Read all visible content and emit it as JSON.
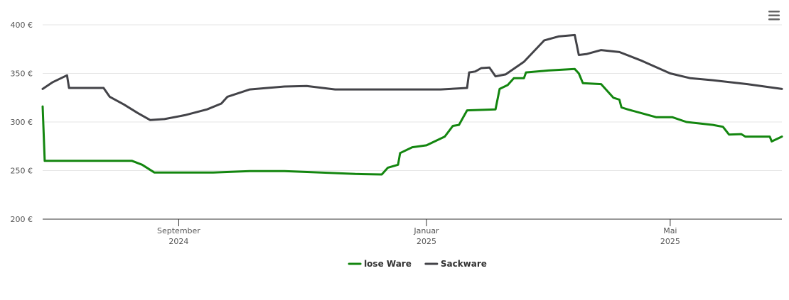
{
  "chart_data": {
    "type": "line",
    "xlim": [
      "2024-06-26",
      "2025-06-25"
    ],
    "xticks": [
      {
        "value": "2024-09-01",
        "label": [
          "September",
          "2024"
        ]
      },
      {
        "value": "2025-01-01",
        "label": [
          "Januar",
          "2025"
        ]
      },
      {
        "value": "2025-05-01",
        "label": [
          "Mai",
          "2025"
        ]
      }
    ],
    "ylim": [
      200,
      400
    ],
    "yticks": [
      {
        "value": 200,
        "label": "200 €"
      },
      {
        "value": 250,
        "label": "250 €"
      },
      {
        "value": 300,
        "label": "300 €"
      },
      {
        "value": 350,
        "label": "350 €"
      },
      {
        "value": 400,
        "label": "400 €"
      }
    ],
    "grid": true,
    "legend": "bottom",
    "series": [
      {
        "name": "lose Ware",
        "color": "#13860f",
        "x": [
          "2024-06-26",
          "2024-06-27",
          "2024-08-09",
          "2024-08-14",
          "2024-08-20",
          "2024-09-18",
          "2024-10-06",
          "2024-10-23",
          "2024-11-10",
          "2024-11-27",
          "2024-12-10",
          "2024-12-13",
          "2024-12-18",
          "2024-12-19",
          "2024-12-25",
          "2025-01-01",
          "2025-01-10",
          "2025-01-14",
          "2025-01-17",
          "2025-01-21",
          "2025-02-04",
          "2025-02-06",
          "2025-02-10",
          "2025-02-13",
          "2025-02-18",
          "2025-02-19",
          "2025-03-02",
          "2025-03-15",
          "2025-03-17",
          "2025-03-19",
          "2025-03-28",
          "2025-04-03",
          "2025-04-06",
          "2025-04-07",
          "2025-04-10",
          "2025-04-17",
          "2025-04-24",
          "2025-05-02",
          "2025-05-09",
          "2025-05-22",
          "2025-05-27",
          "2025-05-30",
          "2025-06-05",
          "2025-06-07",
          "2025-06-19",
          "2025-06-20",
          "2025-06-25"
        ],
        "values": [
          316,
          260,
          260,
          256,
          248,
          248,
          249.5,
          249.5,
          248,
          246.5,
          246,
          253,
          256,
          268,
          274,
          276,
          285,
          296,
          297,
          312,
          313,
          334,
          338,
          345,
          345,
          351,
          353,
          354.5,
          350,
          340,
          339,
          325,
          323,
          315,
          313,
          309,
          305,
          305,
          300,
          297,
          295,
          287,
          287.5,
          285,
          285,
          280,
          285
        ]
      },
      {
        "name": "Sackware",
        "color": "#434348",
        "x": [
          "2024-06-26",
          "2024-07-01",
          "2024-07-08",
          "2024-07-09",
          "2024-07-26",
          "2024-07-29",
          "2024-08-05",
          "2024-08-12",
          "2024-08-18",
          "2024-08-25",
          "2024-09-04",
          "2024-09-15",
          "2024-09-22",
          "2024-09-25",
          "2024-10-06",
          "2024-10-23",
          "2024-11-03",
          "2024-11-17",
          "2024-12-15",
          "2025-01-08",
          "2025-01-21",
          "2025-01-22",
          "2025-01-25",
          "2025-01-28",
          "2025-02-01",
          "2025-02-04",
          "2025-02-09",
          "2025-02-18",
          "2025-02-28",
          "2025-03-07",
          "2025-03-15",
          "2025-03-17",
          "2025-03-21",
          "2025-03-28",
          "2025-04-06",
          "2025-04-17",
          "2025-05-01",
          "2025-05-11",
          "2025-05-22",
          "2025-06-08",
          "2025-06-25"
        ],
        "values": [
          334,
          341,
          348,
          335,
          335,
          326,
          318,
          309,
          302,
          303,
          307,
          313,
          319,
          326,
          333.5,
          336.5,
          337,
          333.5,
          333.5,
          333.5,
          335,
          351,
          352,
          355.5,
          356,
          347,
          349,
          362,
          384,
          388,
          389.5,
          369,
          370,
          374,
          372,
          363,
          350,
          345,
          343,
          339,
          334
        ]
      }
    ]
  }
}
